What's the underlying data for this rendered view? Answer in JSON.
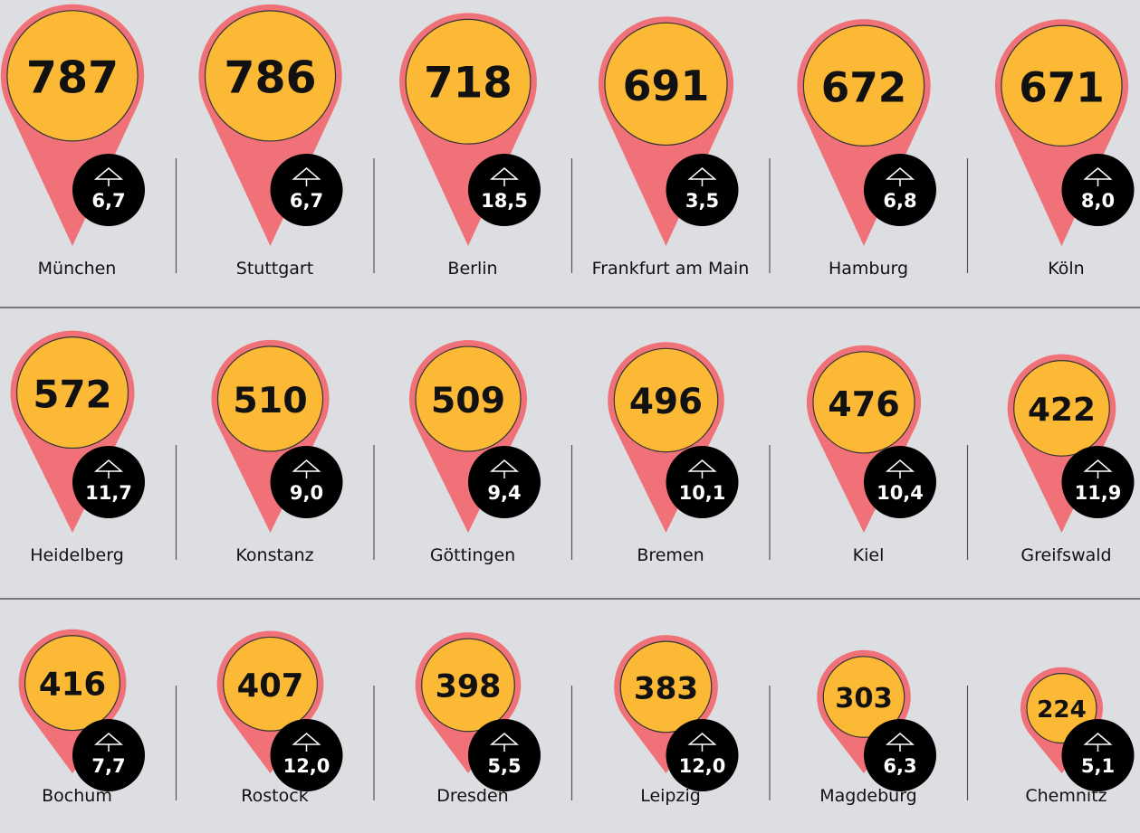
{
  "rows": [
    [
      {
        "name": "München",
        "value": 787,
        "change": "6,7"
      },
      {
        "name": "Stuttgart",
        "value": 786,
        "change": "6,7"
      },
      {
        "name": "Berlin",
        "value": 718,
        "change": "18,5"
      },
      {
        "name": "Frankfurt am Main",
        "value": 691,
        "change": "3,5"
      },
      {
        "name": "Hamburg",
        "value": 672,
        "change": "6,8"
      },
      {
        "name": "Köln",
        "value": 671,
        "change": "8,0"
      }
    ],
    [
      {
        "name": "Heidelberg",
        "value": 572,
        "change": "11,7"
      },
      {
        "name": "Konstanz",
        "value": 510,
        "change": "9,0"
      },
      {
        "name": "Göttingen",
        "value": 509,
        "change": "9,4"
      },
      {
        "name": "Bremen",
        "value": 496,
        "change": "10,1"
      },
      {
        "name": "Kiel",
        "value": 476,
        "change": "10,4"
      },
      {
        "name": "Greifswald",
        "value": 422,
        "change": "11,9"
      }
    ],
    [
      {
        "name": "Bochum",
        "value": 416,
        "change": "7,7"
      },
      {
        "name": "Rostock",
        "value": 407,
        "change": "12,0"
      },
      {
        "name": "Dresden",
        "value": 398,
        "change": "5,5"
      },
      {
        "name": "Leipzig",
        "value": 383,
        "change": "12,0"
      },
      {
        "name": "Magdeburg",
        "value": 303,
        "change": "6,3"
      },
      {
        "name": "Chemnitz",
        "value": 224,
        "change": "5,1"
      }
    ]
  ]
}
